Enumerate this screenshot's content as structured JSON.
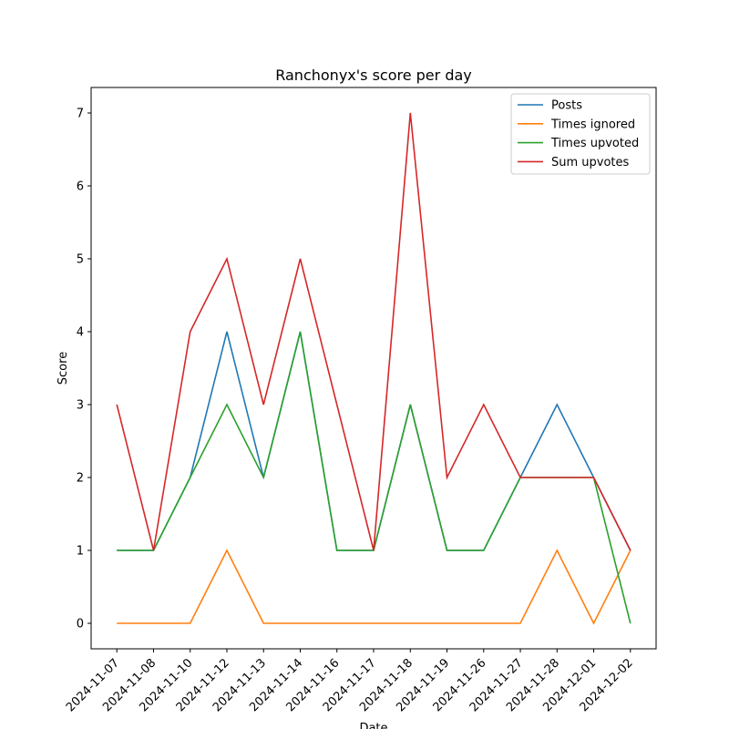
{
  "chart_data": {
    "type": "line",
    "title": "Ranchonyx's score per day",
    "xlabel": "Date",
    "ylabel": "Score",
    "x": [
      "2024-11-07",
      "2024-11-08",
      "2024-11-10",
      "2024-11-12",
      "2024-11-13",
      "2024-11-14",
      "2024-11-16",
      "2024-11-17",
      "2024-11-18",
      "2024-11-19",
      "2024-11-26",
      "2024-11-27",
      "2024-11-28",
      "2024-12-01",
      "2024-12-02"
    ],
    "ylim": [
      -0.35,
      7.35
    ],
    "yticks": [
      0,
      1,
      2,
      3,
      4,
      5,
      6,
      7
    ],
    "grid": false,
    "legend_position": "top-right",
    "series": [
      {
        "name": "Posts",
        "color": "#1f77b4",
        "values": [
          1,
          1,
          2,
          4,
          2,
          4,
          1,
          1,
          3,
          1,
          1,
          2,
          3,
          2,
          1
        ]
      },
      {
        "name": "Times ignored",
        "color": "#ff7f0e",
        "values": [
          0,
          0,
          0,
          1,
          0,
          0,
          0,
          0,
          0,
          0,
          0,
          0,
          1,
          0,
          1
        ]
      },
      {
        "name": "Times upvoted",
        "color": "#2ca02c",
        "values": [
          1,
          1,
          2,
          3,
          2,
          4,
          1,
          1,
          3,
          1,
          1,
          2,
          2,
          2,
          0
        ]
      },
      {
        "name": "Sum upvotes",
        "color": "#d62728",
        "values": [
          3,
          1,
          4,
          5,
          3,
          5,
          3,
          1,
          7,
          2,
          3,
          2,
          2,
          2,
          1
        ]
      }
    ]
  }
}
